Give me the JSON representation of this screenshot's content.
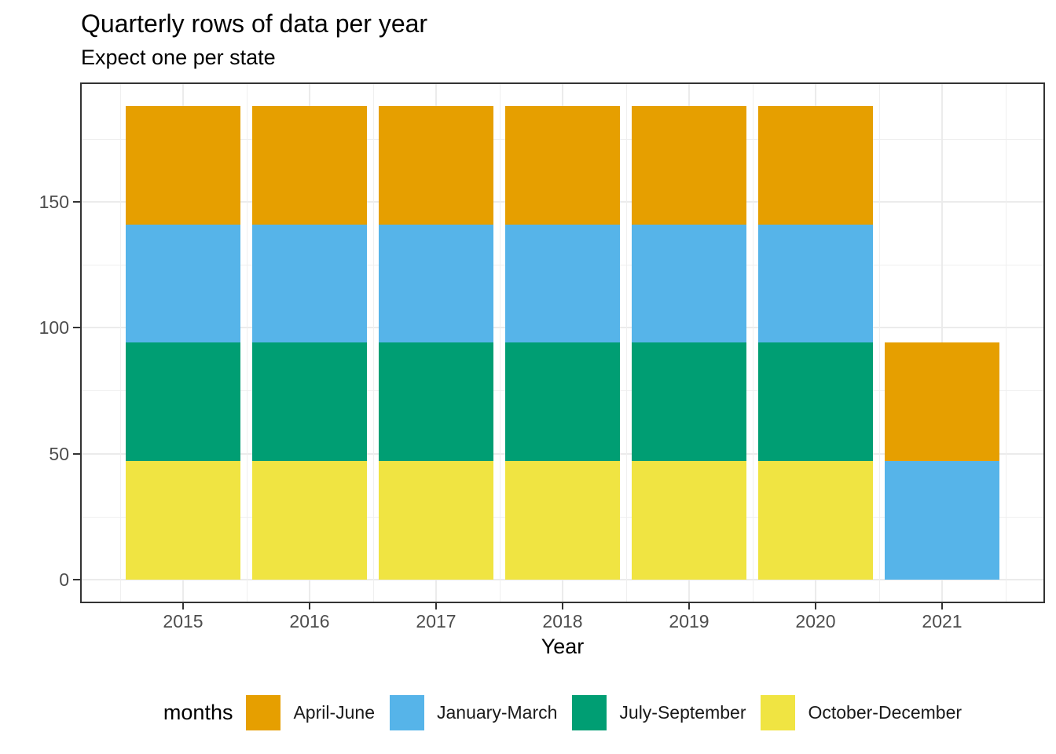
{
  "chart_data": {
    "type": "bar",
    "stacked": true,
    "title": "Quarterly rows of data per year",
    "subtitle": "Expect one per state",
    "xlabel": "Year",
    "ylabel": "",
    "legend_title": "months",
    "legend_position": "bottom",
    "categories": [
      "2015",
      "2016",
      "2017",
      "2018",
      "2019",
      "2020",
      "2021"
    ],
    "series": [
      {
        "name": "October-December",
        "color": "#F0E442",
        "values": [
          47,
          47,
          47,
          47,
          47,
          47,
          0
        ]
      },
      {
        "name": "July-September",
        "color": "#009E73",
        "values": [
          47,
          47,
          47,
          47,
          47,
          47,
          0
        ]
      },
      {
        "name": "January-March",
        "color": "#56B4E9",
        "values": [
          47,
          47,
          47,
          47,
          47,
          47,
          47
        ]
      },
      {
        "name": "April-June",
        "color": "#E69F00",
        "values": [
          47,
          47,
          47,
          47,
          47,
          47,
          47
        ]
      }
    ],
    "legend_order": [
      "April-June",
      "January-March",
      "July-September",
      "October-December"
    ],
    "totals": [
      188,
      188,
      188,
      188,
      188,
      188,
      94
    ],
    "y_ticks": [
      0,
      50,
      100,
      150
    ],
    "y_minor_ticks": [
      25,
      75,
      125,
      175
    ],
    "ylim": [
      0,
      188
    ],
    "grid": true,
    "colors": {
      "grid_major": "#EBEBEB",
      "grid_minor": "#EFEFEF",
      "panel_border": "#333333",
      "tick": "#333333",
      "tick_label": "#4D4D4D",
      "text": "#000000",
      "background": "#FFFFFF"
    }
  }
}
